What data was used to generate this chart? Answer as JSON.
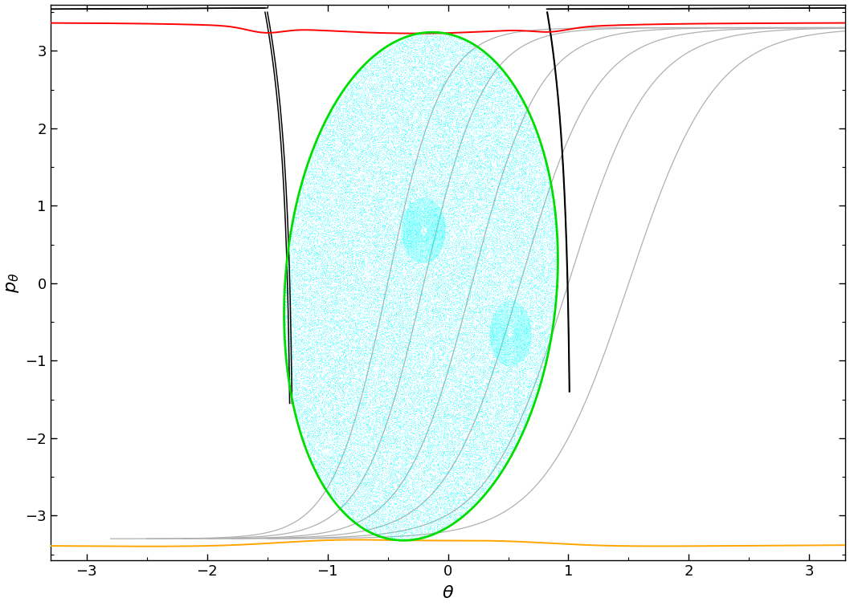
{
  "xlim": [
    -3.3,
    3.3
  ],
  "ylim": [
    -3.58,
    3.6
  ],
  "xlabel": "$\\theta$",
  "ylabel": "$p_\\theta$",
  "xticks": [
    -3,
    -2,
    -1,
    0,
    1,
    2,
    3
  ],
  "yticks": [
    -3,
    -2,
    -1,
    0,
    1,
    2,
    3
  ],
  "colors": {
    "green": "#00dd00",
    "red": "#ff0000",
    "orange": "#ffa500",
    "black": "#000000",
    "gray": "#b0b0b0",
    "cyan": "#00ffff"
  }
}
